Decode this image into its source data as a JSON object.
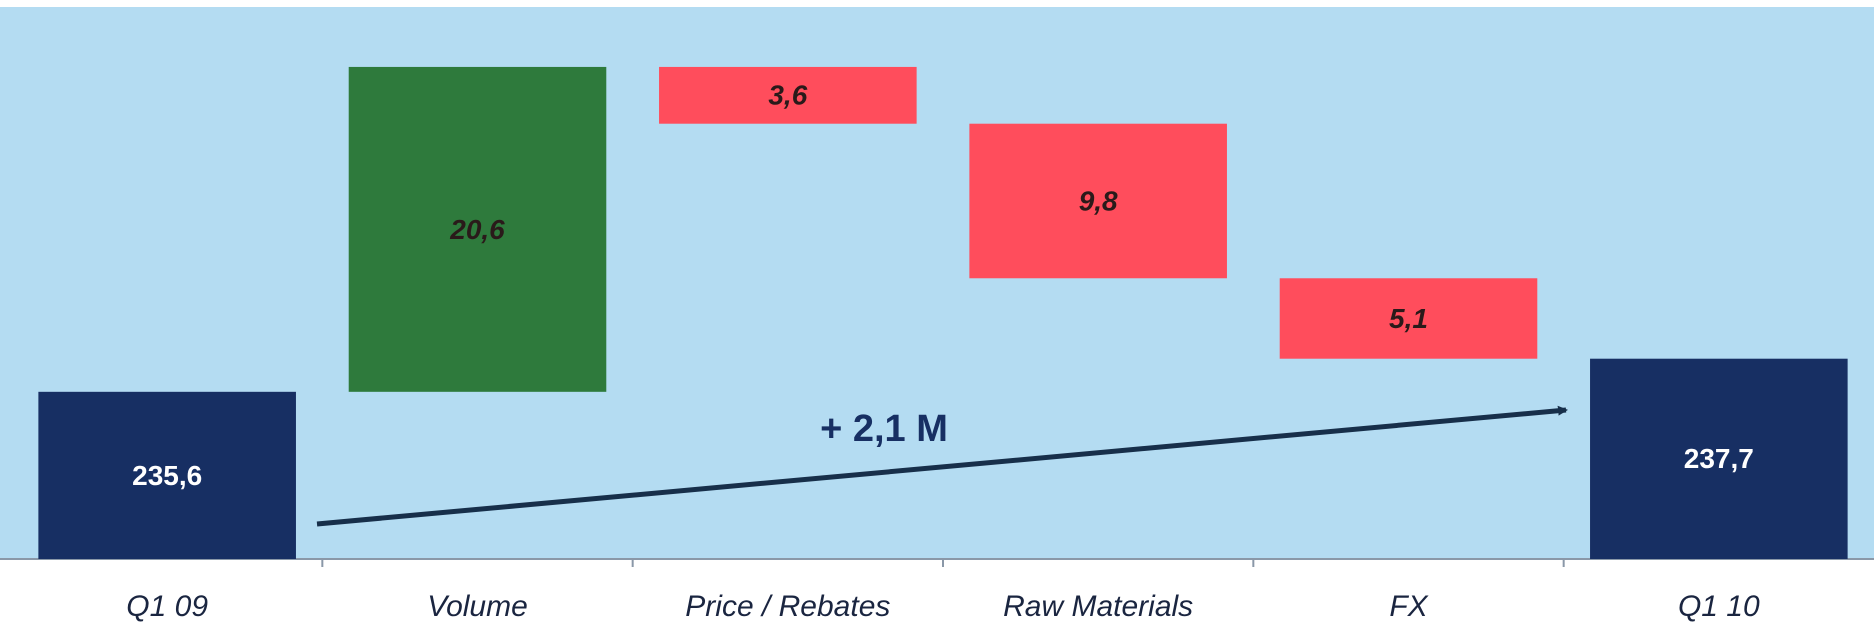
{
  "chart_data": {
    "type": "waterfall",
    "categories": [
      "Q1 09",
      "Volume",
      "Price / Rebates",
      "Raw Materials",
      "FX",
      "Q1 10"
    ],
    "measure": [
      "total",
      "relative",
      "relative",
      "relative",
      "relative",
      "total"
    ],
    "values": [
      235.6,
      20.6,
      -3.6,
      -9.8,
      -5.1,
      237.7
    ],
    "value_labels": [
      "235,6",
      "20,6",
      "3,6",
      "9,8",
      "5,1",
      "237,7"
    ],
    "total_color": "#172f63",
    "increase_color": "#2e7a3c",
    "decrease_color": "#ff4d5c",
    "ylim": [
      225,
      260
    ],
    "annotation": "+ 2,1 M"
  }
}
